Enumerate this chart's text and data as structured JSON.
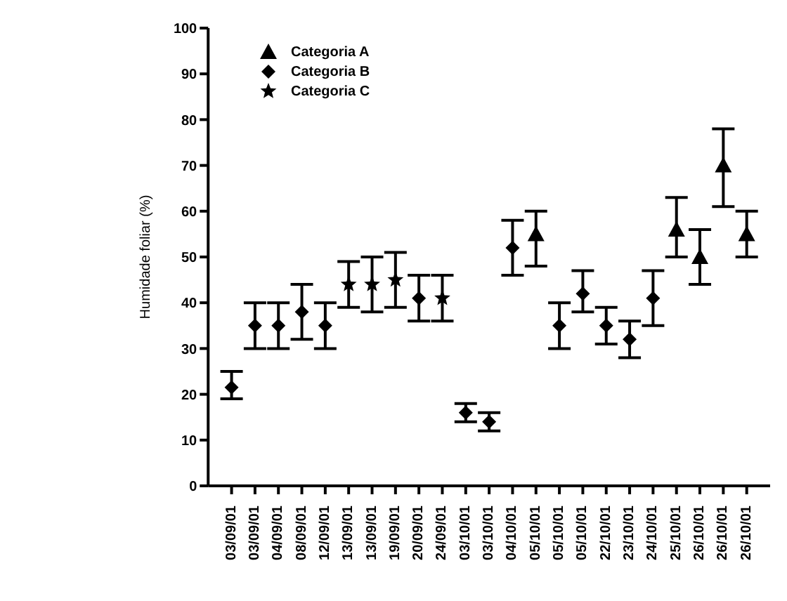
{
  "chart_data": {
    "type": "scatter",
    "ylabel": "Humidade foliar (%)",
    "categories": [
      "03/09/01",
      "03/09/01",
      "04/09/01",
      "08/09/01",
      "12/09/01",
      "13/09/01",
      "13/09/01",
      "19/09/01",
      "20/09/01",
      "24/09/01",
      "03/10/01",
      "03/10/01",
      "04/10/01",
      "05/10/01",
      "05/10/01",
      "05/10/01",
      "22/10/01",
      "23/10/01",
      "24/10/01",
      "25/10/01",
      "26/10/01",
      "26/10/01",
      "26/10/01"
    ],
    "series": [
      {
        "name": "Categoria A",
        "color": "#000000",
        "marker": "triangle",
        "values": [
          null,
          null,
          null,
          null,
          null,
          null,
          null,
          null,
          null,
          null,
          null,
          null,
          null,
          55,
          null,
          null,
          null,
          null,
          null,
          56,
          50,
          70,
          55
        ],
        "errors": [
          null,
          null,
          null,
          null,
          null,
          null,
          null,
          null,
          null,
          null,
          null,
          null,
          null,
          [
            48,
            60
          ],
          null,
          null,
          null,
          null,
          null,
          [
            50,
            63
          ],
          [
            44,
            56
          ],
          [
            61,
            78
          ],
          [
            50,
            60
          ]
        ]
      },
      {
        "name": "Categoria B",
        "color": "#000000",
        "marker": "diamond",
        "values": [
          21.5,
          35,
          35,
          38,
          35,
          null,
          null,
          null,
          41,
          null,
          16,
          14,
          52,
          null,
          35,
          42,
          35,
          32,
          41,
          null,
          null,
          null,
          null
        ],
        "errors": [
          [
            19,
            25
          ],
          [
            30,
            40
          ],
          [
            30,
            40
          ],
          [
            32,
            44
          ],
          [
            30,
            40
          ],
          null,
          null,
          null,
          [
            36,
            46
          ],
          null,
          [
            14,
            18
          ],
          [
            12,
            16
          ],
          [
            46,
            58
          ],
          null,
          [
            30,
            40
          ],
          [
            38,
            47
          ],
          [
            31,
            39
          ],
          [
            28,
            36
          ],
          [
            35,
            47
          ],
          null,
          null,
          null,
          null
        ]
      },
      {
        "name": "Categoria C",
        "color": "#000000",
        "marker": "star",
        "values": [
          null,
          null,
          null,
          null,
          null,
          44,
          44,
          45,
          null,
          41,
          null,
          null,
          null,
          null,
          null,
          null,
          null,
          null,
          null,
          null,
          null,
          null,
          null
        ],
        "errors": [
          null,
          null,
          null,
          null,
          null,
          [
            39,
            49
          ],
          [
            38,
            50
          ],
          [
            39,
            51
          ],
          null,
          [
            36,
            46
          ],
          null,
          null,
          null,
          null,
          null,
          null,
          null,
          null,
          null,
          null,
          null,
          null,
          null
        ]
      }
    ],
    "ylim": [
      0,
      100
    ],
    "yticks": [
      0,
      10,
      20,
      30,
      40,
      50,
      60,
      70,
      80,
      90,
      100
    ],
    "grid": false,
    "legend": "top left"
  }
}
